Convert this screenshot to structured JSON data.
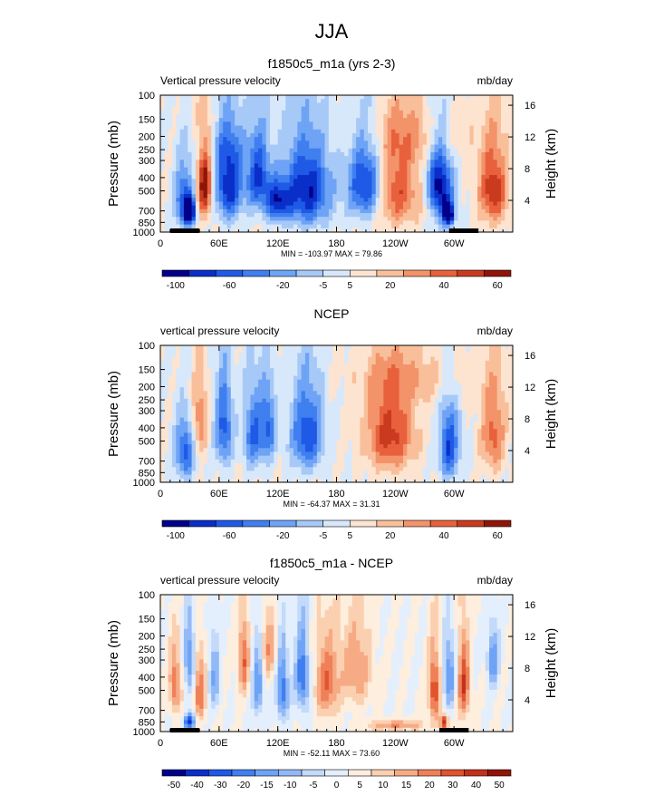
{
  "figure_title": "JJA",
  "colors": {
    "palette_13": [
      "#00008a",
      "#0a2fc8",
      "#1f5ae6",
      "#3f7fef",
      "#6ea3f5",
      "#a7c9f7",
      "#d8e8fb",
      "#fde4d0",
      "#f9bf9b",
      "#f3936a",
      "#e8613c",
      "#c93a1f",
      "#8f1508"
    ],
    "palette_15": [
      "#00008a",
      "#0a2fc8",
      "#1f5ae6",
      "#3f7fef",
      "#6ea3f5",
      "#93b9f6",
      "#c3dafa",
      "#e4effd",
      "#fdeede",
      "#fbd0b1",
      "#f6ab85",
      "#ef8058",
      "#e0542f",
      "#c2321a",
      "#8f1508"
    ]
  },
  "chart_data": [
    {
      "type": "heatmap",
      "id": "model",
      "title": "f1850c5_m1a (yrs 2-3)",
      "left_label": "Vertical pressure velocity",
      "right_label": "mb/day",
      "ylabel": "Pressure (mb)",
      "y2label": "Height (km)",
      "x_tick_labels": [
        "0",
        "60E",
        "120E",
        "180",
        "120W",
        "60W"
      ],
      "x_ticks_deg": [
        0,
        60,
        120,
        180,
        240,
        300
      ],
      "xlim": [
        0,
        360
      ],
      "y_tick_labels": [
        "100",
        "150",
        "200",
        "250",
        "300",
        "400",
        "500",
        "700",
        "850",
        "1000"
      ],
      "y_ticks_mb": [
        100,
        150,
        200,
        250,
        300,
        400,
        500,
        700,
        850,
        1000
      ],
      "ylim_mb": [
        1000,
        100
      ],
      "y2_tick_labels": [
        "4",
        "8",
        "12",
        "16"
      ],
      "y2_ticks_km": [
        4,
        8,
        12,
        16
      ],
      "stats": "MIN = -103.97   MAX = 79.86",
      "colorbar_labels": [
        "-100",
        "-60",
        "-20",
        "-5",
        "5",
        "20",
        "40",
        "60"
      ],
      "palette": "palette_13",
      "field": {
        "bg": 0.5,
        "blobs": [
          [
            25,
            600,
            10,
            300,
            -5
          ],
          [
            30,
            720,
            6,
            140,
            -6
          ],
          [
            45,
            450,
            8,
            300,
            6
          ],
          [
            70,
            450,
            14,
            320,
            -6
          ],
          [
            100,
            400,
            12,
            260,
            -5
          ],
          [
            150,
            500,
            24,
            350,
            -6
          ],
          [
            120,
            600,
            12,
            200,
            -5
          ],
          [
            210,
            450,
            18,
            300,
            -6
          ],
          [
            240,
            500,
            25,
            350,
            4
          ],
          [
            290,
            550,
            10,
            350,
            -5
          ],
          [
            295,
            750,
            5,
            120,
            -6
          ],
          [
            280,
            420,
            10,
            250,
            -4
          ],
          [
            340,
            500,
            14,
            320,
            5
          ],
          [
            260,
            200,
            60,
            100,
            1.5
          ],
          [
            60,
            250,
            30,
            80,
            -1
          ]
        ]
      },
      "land_segments": [
        [
          10,
          40
        ],
        [
          295,
          325
        ]
      ]
    },
    {
      "type": "heatmap",
      "id": "ncep",
      "title": "NCEP",
      "left_label": "vertical pressure velocity",
      "right_label": "mb/day",
      "ylabel": "Pressure (mb)",
      "y2label": "Height (km)",
      "x_tick_labels": [
        "0",
        "60E",
        "120E",
        "180",
        "120W",
        "60W"
      ],
      "x_ticks_deg": [
        0,
        60,
        120,
        180,
        240,
        300
      ],
      "xlim": [
        0,
        360
      ],
      "y_tick_labels": [
        "100",
        "150",
        "200",
        "250",
        "300",
        "400",
        "500",
        "700",
        "850",
        "1000"
      ],
      "y_ticks_mb": [
        100,
        150,
        200,
        250,
        300,
        400,
        500,
        700,
        850,
        1000
      ],
      "ylim_mb": [
        1000,
        100
      ],
      "y2_tick_labels": [
        "4",
        "8",
        "12",
        "16"
      ],
      "y2_ticks_km": [
        4,
        8,
        12,
        16
      ],
      "stats": "MIN = -64.37   MAX = 31.31",
      "colorbar_labels": [
        "-100",
        "-60",
        "-20",
        "-5",
        "5",
        "20",
        "40",
        "60"
      ],
      "palette": "palette_13",
      "field": {
        "bg": 0.5,
        "blobs": [
          [
            25,
            600,
            10,
            300,
            -4.5
          ],
          [
            40,
            350,
            8,
            250,
            3
          ],
          [
            65,
            400,
            9,
            300,
            -4.5
          ],
          [
            95,
            450,
            10,
            300,
            -4
          ],
          [
            110,
            400,
            8,
            250,
            -4
          ],
          [
            150,
            450,
            16,
            320,
            -5
          ],
          [
            235,
            450,
            24,
            320,
            4.5
          ],
          [
            295,
            550,
            10,
            350,
            -5
          ],
          [
            340,
            450,
            12,
            320,
            3.5
          ],
          [
            260,
            180,
            60,
            80,
            1.5
          ]
        ]
      },
      "land_segments": []
    },
    {
      "type": "heatmap",
      "id": "diff",
      "title": "f1850c5_m1a - NCEP",
      "left_label": "vertical pressure velocity",
      "right_label": "mb/day",
      "ylabel": "Pressure (mb)",
      "y2label": "Height (km)",
      "x_tick_labels": [
        "0",
        "60E",
        "120E",
        "180",
        "120W",
        "60W"
      ],
      "x_ticks_deg": [
        0,
        60,
        120,
        180,
        240,
        300
      ],
      "xlim": [
        0,
        360
      ],
      "y_tick_labels": [
        "100",
        "150",
        "200",
        "250",
        "300",
        "400",
        "500",
        "700",
        "850",
        "1000"
      ],
      "y_ticks_mb": [
        100,
        150,
        200,
        250,
        300,
        400,
        500,
        700,
        850,
        1000
      ],
      "ylim_mb": [
        1000,
        100
      ],
      "y2_tick_labels": [
        "4",
        "8",
        "12",
        "16"
      ],
      "y2_ticks_km": [
        4,
        8,
        12,
        16
      ],
      "stats": "MIN = -52.11   MAX = 73.60",
      "colorbar_labels": [
        "-50",
        "-40",
        "-30",
        "-20",
        "-15",
        "-10",
        "-5",
        "0",
        "5",
        "10",
        "15",
        "20",
        "30",
        "40",
        "50"
      ],
      "palette": "palette_15",
      "field": {
        "bg": 0.5,
        "blobs": [
          [
            15,
            450,
            6,
            250,
            4
          ],
          [
            30,
            300,
            6,
            200,
            -4
          ],
          [
            40,
            500,
            6,
            300,
            4
          ],
          [
            55,
            400,
            6,
            250,
            -3
          ],
          [
            85,
            300,
            6,
            200,
            4
          ],
          [
            100,
            450,
            6,
            300,
            -4
          ],
          [
            125,
            500,
            6,
            300,
            -5
          ],
          [
            145,
            400,
            7,
            280,
            -5
          ],
          [
            170,
            450,
            12,
            300,
            4
          ],
          [
            200,
            350,
            15,
            250,
            3
          ],
          [
            280,
            500,
            6,
            300,
            5
          ],
          [
            295,
            400,
            6,
            250,
            -4
          ],
          [
            310,
            450,
            6,
            300,
            5
          ],
          [
            340,
            300,
            6,
            150,
            -4
          ],
          [
            30,
            850,
            6,
            120,
            -6
          ],
          [
            290,
            850,
            4,
            100,
            6
          ],
          [
            240,
            900,
            30,
            80,
            3
          ],
          [
            110,
            250,
            8,
            150,
            3
          ]
        ]
      },
      "land_segments": [
        [
          10,
          40
        ],
        [
          285,
          315
        ]
      ]
    }
  ]
}
